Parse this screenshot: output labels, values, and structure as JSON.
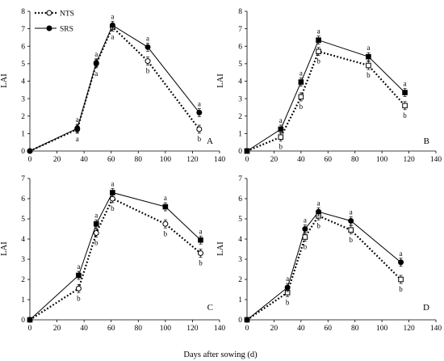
{
  "chart_data": [
    {
      "type": "line",
      "panel_label": "A",
      "ylabel": "LAI",
      "xlim": [
        0,
        140
      ],
      "ylim": [
        0,
        8
      ],
      "xticks": [
        0,
        20,
        40,
        60,
        80,
        100,
        120,
        140
      ],
      "yticks": [
        0,
        1,
        2,
        3,
        4,
        5,
        6,
        7,
        8
      ],
      "legend": {
        "position": "top-left",
        "entries": [
          "NTS",
          "SRS"
        ]
      },
      "series": [
        {
          "name": "NTS",
          "style": "dotted",
          "marker": "open-circle",
          "x": [
            0,
            35,
            49,
            61,
            87,
            125
          ],
          "y": [
            0.0,
            1.25,
            5.0,
            7.1,
            5.15,
            1.25
          ],
          "labels": [
            "",
            "a",
            "a",
            "a",
            "b",
            "b"
          ]
        },
        {
          "name": "SRS",
          "style": "solid",
          "marker": "filled-circle",
          "x": [
            0,
            35,
            49,
            61,
            87,
            125
          ],
          "y": [
            0.0,
            1.3,
            5.05,
            7.2,
            5.95,
            2.2
          ],
          "labels": [
            "",
            "a",
            "a",
            "a",
            "a",
            "a"
          ]
        }
      ]
    },
    {
      "type": "line",
      "panel_label": "B",
      "ylabel": "LAI",
      "xlim": [
        0,
        140
      ],
      "ylim": [
        0,
        8
      ],
      "xticks": [
        0,
        20,
        40,
        60,
        80,
        100,
        120,
        140
      ],
      "yticks": [
        0,
        1,
        2,
        3,
        4,
        5,
        6,
        7,
        8
      ],
      "series": [
        {
          "name": "NTS",
          "style": "dotted",
          "marker": "open-square",
          "x": [
            0,
            25,
            40,
            53,
            90,
            117
          ],
          "y": [
            0.0,
            0.8,
            3.1,
            5.7,
            4.9,
            2.6
          ],
          "labels": [
            "",
            "b",
            "b",
            "b",
            "b",
            "b"
          ]
        },
        {
          "name": "SRS",
          "style": "solid",
          "marker": "filled-square",
          "x": [
            0,
            25,
            40,
            53,
            90,
            117
          ],
          "y": [
            0.0,
            1.25,
            3.95,
            6.35,
            5.4,
            3.35
          ],
          "labels": [
            "",
            "a",
            "a",
            "a",
            "a",
            "a"
          ]
        }
      ]
    },
    {
      "type": "line",
      "panel_label": "C",
      "ylabel": "LAI",
      "xlim": [
        0,
        140
      ],
      "ylim": [
        0,
        7
      ],
      "xticks": [
        0,
        20,
        40,
        60,
        80,
        100,
        120,
        140
      ],
      "yticks": [
        0,
        1,
        2,
        3,
        4,
        5,
        6,
        7
      ],
      "series": [
        {
          "name": "NTS",
          "style": "dotted",
          "marker": "open-circle",
          "x": [
            0,
            36,
            49,
            61,
            100,
            126
          ],
          "y": [
            0.0,
            1.55,
            4.3,
            6.0,
            4.75,
            3.3
          ],
          "labels": [
            "",
            "b",
            "b",
            "b",
            "b",
            "b"
          ]
        },
        {
          "name": "SRS",
          "style": "solid",
          "marker": "filled-square",
          "x": [
            0,
            36,
            49,
            61,
            100,
            126
          ],
          "y": [
            0.0,
            2.2,
            4.75,
            6.3,
            5.6,
            3.95
          ],
          "labels": [
            "",
            "a",
            "a",
            "a",
            "a",
            "a"
          ]
        }
      ]
    },
    {
      "type": "line",
      "panel_label": "D",
      "ylabel": "LAI",
      "xlim": [
        0,
        140
      ],
      "ylim": [
        0,
        7
      ],
      "xticks": [
        0,
        20,
        40,
        60,
        80,
        100,
        120,
        140
      ],
      "yticks": [
        0,
        1,
        2,
        3,
        4,
        5,
        6,
        7
      ],
      "series": [
        {
          "name": "NTS",
          "style": "dotted",
          "marker": "open-square",
          "x": [
            0,
            30,
            43,
            53,
            77,
            114
          ],
          "y": [
            0.0,
            1.35,
            4.1,
            5.15,
            4.45,
            2.0
          ],
          "labels": [
            "",
            "b",
            "b",
            "b",
            "b",
            "b"
          ]
        },
        {
          "name": "SRS",
          "style": "solid",
          "marker": "filled-circle",
          "x": [
            0,
            30,
            43,
            53,
            77,
            114
          ],
          "y": [
            0.0,
            1.6,
            4.5,
            5.35,
            4.9,
            2.85
          ],
          "labels": [
            "",
            "a",
            "a",
            "a",
            "a",
            "a"
          ]
        }
      ]
    }
  ],
  "shared": {
    "xlabel": "Days after sowing (d)"
  }
}
